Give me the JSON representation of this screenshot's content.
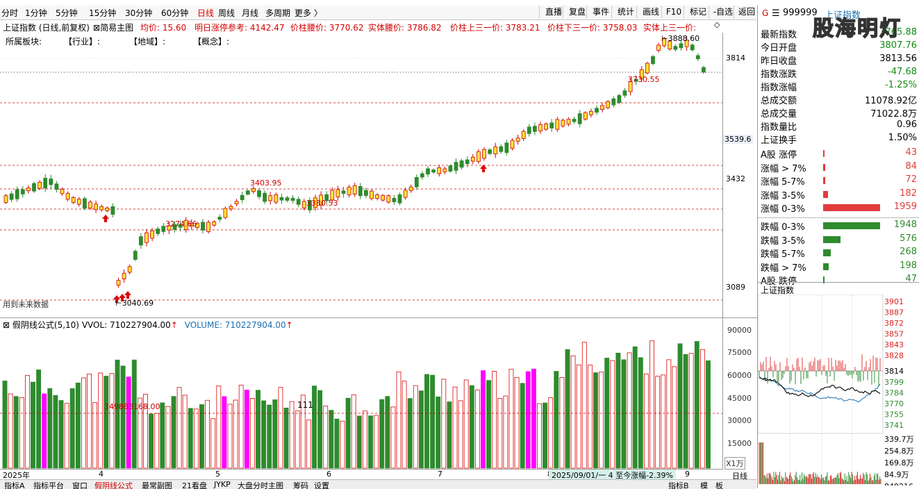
{
  "toolbar": {
    "periods": [
      "分时",
      "1分钟",
      "5分钟",
      "15分钟",
      "30分钟",
      "60分钟",
      "日线",
      "周线",
      "月线",
      "多周期",
      "更多 〉"
    ],
    "active_period": "日线",
    "buttons": [
      "直播",
      "复盘",
      "事件",
      "统计",
      "画线",
      "F10",
      "标记",
      "-自选",
      "返回"
    ]
  },
  "info": {
    "name": "上证指数 (日线,前复权)",
    "mode": "简易主图",
    "avg": "均价: 15.60",
    "limit_ref": "明日涨停参考: 4142.47",
    "col_mid": "价柱腰价: 3770.62",
    "body_mid": "实体腰价: 3786.82",
    "col_up3": "价柱上三一价: 3783.21",
    "col_down3": "价柱下三一价: 3758.03",
    "body_up3": "实体上三一价:"
  },
  "sector": {
    "label": "所属板块:",
    "industry": "【行业】:",
    "region": "【地域】:",
    "concept": "【概念】:"
  },
  "price_axis": [
    "3814",
    "3539.6",
    "3432",
    "3089"
  ],
  "annotations": {
    "high": "3888.60",
    "a1": "3730.55",
    "a2": "3403.95",
    "a3": "3380.53",
    "a4": "3274.66",
    "low": "3040.69",
    "future": "用到未来数据"
  },
  "volume": {
    "header_name": "假阴线公式(5,10)",
    "vvol": "VVOL: 710227904.00",
    "volume": "VOLUME: 710227904.00",
    "label_mid": "349883168.00",
    "label_111": "111",
    "axis": [
      "90000",
      "75000",
      "60000",
      "45000",
      "30000",
      "15000"
    ],
    "unit": "X1万"
  },
  "dates": [
    "2025年",
    "4",
    "5",
    "6",
    "7",
    "8",
    "9"
  ],
  "status_text": "2025/09/01/一 4 至今涨幅-2.39%",
  "day_label": "日线",
  "bottom_tabs": [
    "指标A",
    "指标平台",
    "窗口",
    "假阴线公式",
    "最常副图",
    "21看盘",
    "JYKP",
    "大盘分时主图",
    "筹码",
    "设置"
  ],
  "bottom_right_tabs": [
    "指标B",
    "模",
    "板"
  ],
  "right": {
    "code": "999999",
    "name": "上证指数",
    "stats": [
      {
        "label": "最新指数",
        "value": "3765.88",
        "color": "#178a17"
      },
      {
        "label": "今日开盘",
        "value": "3807.76",
        "color": "#178a17"
      },
      {
        "label": "昨日收盘",
        "value": "3813.56",
        "color": "#000000"
      },
      {
        "label": "指数涨跌",
        "value": "-47.68",
        "color": "#178a17"
      },
      {
        "label": "指数涨幅",
        "value": "-1.25%",
        "color": "#178a17"
      },
      {
        "label": "总成交额",
        "value": "11078.92亿",
        "color": "#000000"
      },
      {
        "label": "总成交量",
        "value": "71022.8万",
        "color": "#000000"
      },
      {
        "label": "指数量比",
        "value": "0.96",
        "color": "#000000"
      },
      {
        "label": "上证换手",
        "value": "1.50%",
        "color": "#000000"
      }
    ],
    "up_rows": [
      {
        "label": "A股 涨停",
        "value": "43",
        "fraction": 0.02
      },
      {
        "label": "涨幅 > 7%",
        "value": "84",
        "fraction": 0.04
      },
      {
        "label": "涨幅 5-7%",
        "value": "72",
        "fraction": 0.035
      },
      {
        "label": "涨幅 3-5%",
        "value": "182",
        "fraction": 0.09
      },
      {
        "label": "涨幅 0-3%",
        "value": "1959",
        "fraction": 1.0
      }
    ],
    "down_rows": [
      {
        "label": "跌幅 0-3%",
        "value": "1948",
        "fraction": 1.0
      },
      {
        "label": "跌幅 3-5%",
        "value": "576",
        "fraction": 0.3
      },
      {
        "label": "跌幅 5-7%",
        "value": "268",
        "fraction": 0.14
      },
      {
        "label": "跌幅 > 7%",
        "value": "198",
        "fraction": 0.1
      },
      {
        "label": "A股 跌停",
        "value": "47",
        "fraction": 0.02
      }
    ],
    "mini_title": "上证指数",
    "mini_axis_up": [
      "3901",
      "3887",
      "3872",
      "3857",
      "3843",
      "3828"
    ],
    "mini_axis_mid": "3814",
    "mini_axis_down": [
      "3799",
      "3784",
      "3770",
      "3755",
      "3741"
    ],
    "mini_vol_axis": [
      "339.7万",
      "254.8万",
      "169.8万",
      "84.9万",
      "849216"
    ]
  },
  "watermark": "股海明灯"
}
